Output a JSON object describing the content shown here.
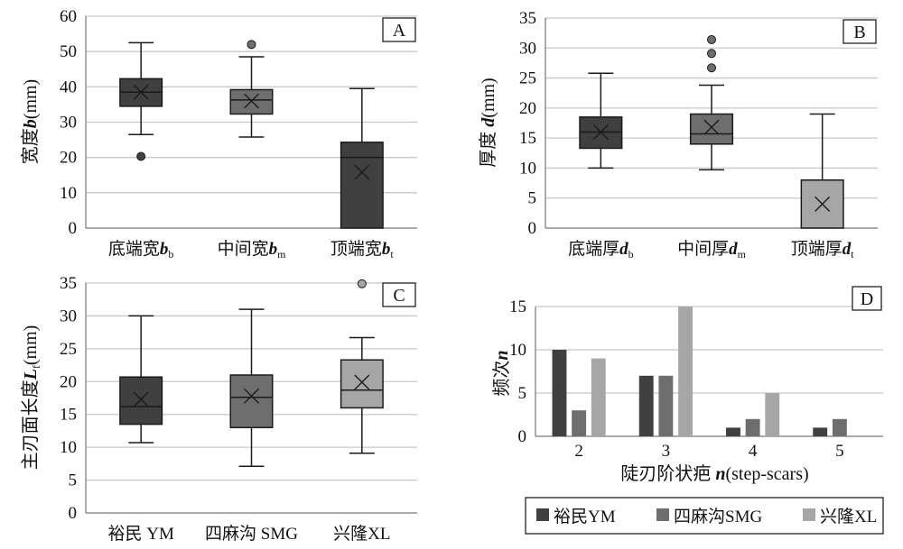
{
  "colors": {
    "dark": "#404040",
    "medium": "#6e6e6e",
    "light": "#a6a6a6",
    "grid": "#c8c8c8",
    "axis": "#7f7f7f",
    "stroke": "#1a1a1a"
  },
  "chart_data": [
    {
      "panel": "A",
      "type": "box",
      "ylabel": "宽度b(mm)",
      "ylabel_parts": [
        "宽度",
        "b",
        "(mm)"
      ],
      "ylim": [
        0,
        60
      ],
      "yticks": [
        0,
        10,
        20,
        30,
        40,
        50,
        60
      ],
      "categories": [
        "底端宽b_b",
        "中间宽b_m",
        "顶端宽b_t"
      ],
      "category_parts": [
        [
          "底端宽",
          "b",
          "b"
        ],
        [
          "中间宽",
          "b",
          "m"
        ],
        [
          "顶端宽",
          "b",
          "t"
        ]
      ],
      "boxes": [
        {
          "min": 26.5,
          "q1": 34.5,
          "median": 38.5,
          "q3": 42.3,
          "max": 52.5,
          "mean": 38.5,
          "outliers": [
            20.3
          ],
          "color": "dark"
        },
        {
          "min": 25.8,
          "q1": 32.3,
          "median": 36.3,
          "q3": 39.2,
          "max": 48.5,
          "mean": 36.0,
          "outliers": [
            52.0
          ],
          "color": "medium"
        },
        {
          "min": 0,
          "q1": 0,
          "median": 20.0,
          "q3": 24.3,
          "max": 39.5,
          "mean": 15.8,
          "outliers": [],
          "color": "dark"
        }
      ]
    },
    {
      "panel": "B",
      "type": "box",
      "ylabel": "厚度 d(mm)",
      "ylabel_parts": [
        "厚度 ",
        "d",
        "(mm)"
      ],
      "ylim": [
        0,
        35
      ],
      "yticks": [
        0,
        5,
        10,
        15,
        20,
        25,
        30,
        35
      ],
      "categories": [
        "底端厚d_b",
        "中间厚d_m",
        "顶端厚d_t"
      ],
      "category_parts": [
        [
          "底端厚",
          "d",
          "b"
        ],
        [
          "中间厚",
          "d",
          "m"
        ],
        [
          "顶端厚",
          "d",
          "t"
        ]
      ],
      "boxes": [
        {
          "min": 10.0,
          "q1": 13.3,
          "median": 16.0,
          "q3": 18.5,
          "max": 25.8,
          "mean": 16.0,
          "outliers": [],
          "color": "dark"
        },
        {
          "min": 9.7,
          "q1": 14.0,
          "median": 15.7,
          "q3": 19.0,
          "max": 23.8,
          "mean": 16.8,
          "outliers": [
            26.7,
            29.1,
            31.4
          ],
          "color": "medium"
        },
        {
          "min": 0,
          "q1": 0,
          "median": 0,
          "q3": 8.0,
          "max": 19.0,
          "mean": 4.0,
          "outliers": [],
          "color": "light"
        }
      ]
    },
    {
      "panel": "C",
      "type": "box",
      "ylabel": "主刃面长度L_f(mm)",
      "ylabel_parts": [
        "主刃面长度",
        "L",
        "f",
        "(mm)"
      ],
      "ylim": [
        0,
        35
      ],
      "yticks": [
        0,
        5,
        10,
        15,
        20,
        25,
        30,
        35
      ],
      "categories": [
        "裕民 YM",
        "四麻沟 SMG",
        "兴隆XL"
      ],
      "boxes": [
        {
          "min": 10.7,
          "q1": 13.5,
          "median": 16.2,
          "q3": 20.7,
          "max": 30.0,
          "mean": 17.3,
          "outliers": [],
          "color": "dark"
        },
        {
          "min": 7.1,
          "q1": 13.0,
          "median": 17.6,
          "q3": 21.0,
          "max": 31.0,
          "mean": 17.8,
          "outliers": [],
          "color": "medium"
        },
        {
          "min": 9.1,
          "q1": 16.0,
          "median": 18.7,
          "q3": 23.3,
          "max": 26.7,
          "mean": 19.9,
          "outliers": [
            34.9
          ],
          "color": "light"
        }
      ]
    },
    {
      "panel": "D",
      "type": "bar",
      "ylabel": "频次n",
      "ylabel_parts": [
        "频次",
        "n"
      ],
      "xlabel": "陡刃阶状疤 n(step-scars)",
      "xlabel_parts": [
        "陡刃阶状疤 ",
        "n",
        "(step-scars)"
      ],
      "ylim": [
        0,
        15
      ],
      "yticks": [
        0,
        5,
        10,
        15
      ],
      "categories": [
        "2",
        "3",
        "4",
        "5"
      ],
      "series": [
        {
          "name": "裕民YM",
          "values": [
            10,
            7,
            1,
            1
          ],
          "color": "dark"
        },
        {
          "name": "四麻沟SMG",
          "values": [
            3,
            7,
            2,
            2
          ],
          "color": "medium"
        },
        {
          "name": "兴隆XL",
          "values": [
            9,
            15,
            5,
            0
          ],
          "color": "light"
        }
      ],
      "legend_position": "bottom"
    }
  ]
}
